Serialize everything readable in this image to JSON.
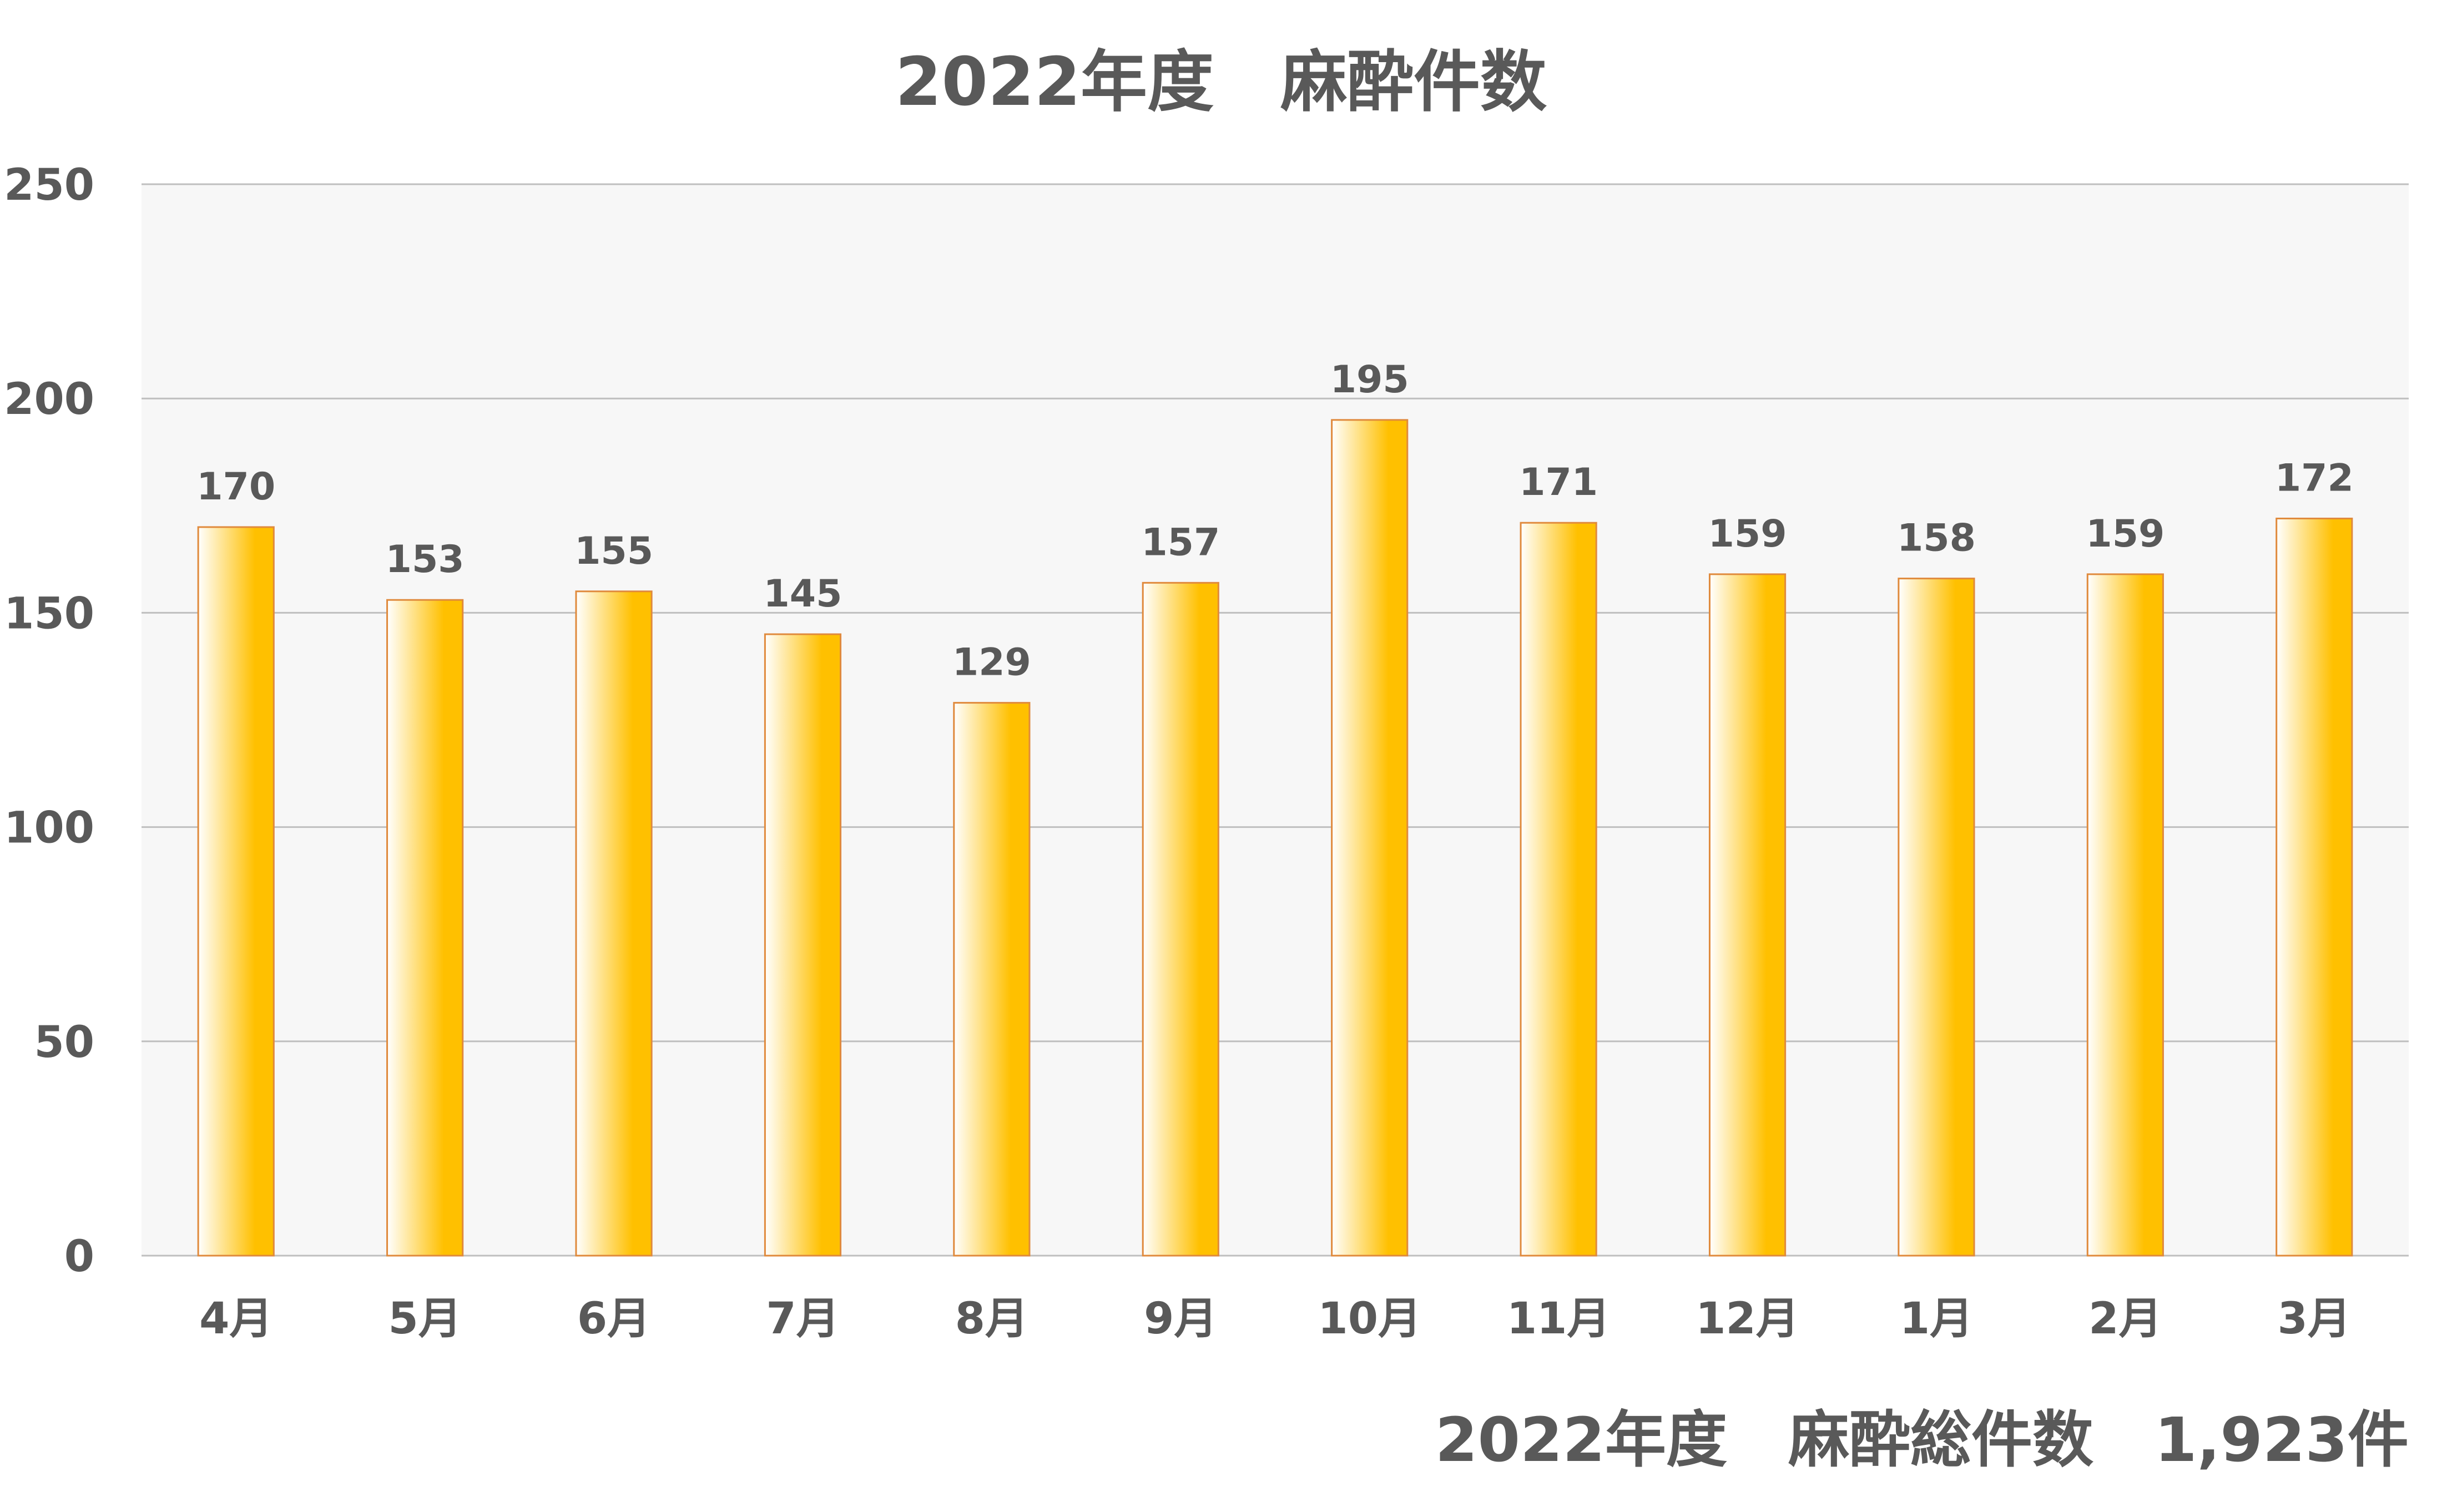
{
  "chart_data": {
    "type": "bar",
    "title": "2022年度　麻酔件数",
    "categories": [
      "4月",
      "5月",
      "6月",
      "7月",
      "8月",
      "9月",
      "10月",
      "11月",
      "12月",
      "1月",
      "2月",
      "3月"
    ],
    "values": [
      170,
      153,
      155,
      145,
      129,
      157,
      195,
      171,
      159,
      158,
      159,
      172
    ],
    "ylim": [
      0,
      250
    ],
    "yticks": [
      0,
      50,
      100,
      150,
      200,
      250
    ],
    "grid": true,
    "data_labels": true,
    "xlabel": "",
    "ylabel": ""
  },
  "footer": {
    "total_text": "2022年度　麻酔総件数　1,923件"
  },
  "colors": {
    "bar_light": "#ffffff",
    "bar_dark": "#ffc000",
    "bar_border": "#e08a3c",
    "plot_bg": "#f7f7f7",
    "grid": "#bfbfbf",
    "text": "#595959"
  }
}
